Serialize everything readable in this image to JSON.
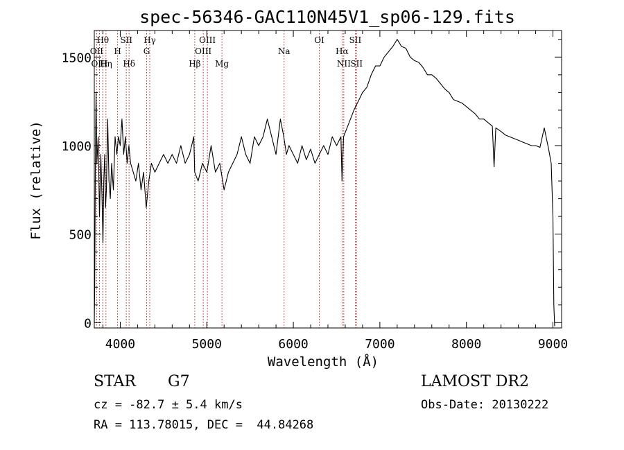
{
  "chart_data": {
    "type": "line",
    "title": "spec-56346-GAC110N45V1_sp06-129.fits",
    "xlabel": "Wavelength (Å)",
    "ylabel": "Flux (relative)",
    "xlim": [
      3700,
      9100
    ],
    "ylim": [
      -30,
      1650
    ],
    "x_ticks": [
      4000,
      5000,
      6000,
      7000,
      8000,
      9000
    ],
    "y_ticks": [
      0,
      500,
      1000,
      1500
    ],
    "grid": false,
    "series": [
      {
        "x": [
          3700,
          3705,
          3712,
          3720,
          3730,
          3745,
          3760,
          3775,
          3790,
          3800,
          3810,
          3820,
          3830,
          3840,
          3855,
          3870,
          3885,
          3900,
          3920,
          3940,
          3960,
          3980,
          4000,
          4020,
          4040,
          4060,
          4080,
          4100,
          4120,
          4150,
          4180,
          4210,
          4240,
          4270,
          4300,
          4330,
          4360,
          4400,
          4450,
          4500,
          4550,
          4600,
          4650,
          4700,
          4750,
          4800,
          4850,
          4860,
          4900,
          4950,
          5000,
          5050,
          5100,
          5150,
          5200,
          5250,
          5300,
          5350,
          5400,
          5450,
          5500,
          5550,
          5600,
          5650,
          5700,
          5750,
          5800,
          5850,
          5890,
          5920,
          5950,
          6000,
          6050,
          6100,
          6150,
          6200,
          6250,
          6300,
          6350,
          6400,
          6450,
          6500,
          6550,
          6563,
          6580,
          6620,
          6660,
          6700,
          6750,
          6800,
          6850,
          6900,
          6950,
          7000,
          7050,
          7100,
          7150,
          7200,
          7250,
          7300,
          7350,
          7400,
          7450,
          7500,
          7550,
          7600,
          7650,
          7700,
          7750,
          7800,
          7850,
          7900,
          7950,
          8000,
          8050,
          8100,
          8150,
          8200,
          8250,
          8300,
          8320,
          8340,
          8400,
          8450,
          8500,
          8550,
          8600,
          8650,
          8700,
          8750,
          8800,
          8850,
          8900,
          8950,
          8980,
          9000,
          9010,
          9020
        ],
        "y": [
          0,
          200,
          850,
          1300,
          900,
          1050,
          600,
          950,
          700,
          450,
          800,
          950,
          650,
          750,
          1150,
          800,
          700,
          900,
          750,
          1050,
          950,
          1050,
          1000,
          1150,
          950,
          1050,
          900,
          1000,
          900,
          850,
          800,
          900,
          750,
          850,
          650,
          800,
          900,
          850,
          900,
          950,
          900,
          950,
          900,
          1000,
          900,
          950,
          1050,
          850,
          800,
          900,
          850,
          1000,
          850,
          900,
          750,
          850,
          900,
          950,
          1050,
          950,
          900,
          1050,
          1000,
          1050,
          1150,
          1050,
          950,
          1150,
          1050,
          950,
          1000,
          950,
          900,
          1000,
          920,
          980,
          900,
          950,
          1000,
          950,
          1050,
          1000,
          1050,
          800,
          1050,
          1100,
          1150,
          1200,
          1250,
          1300,
          1330,
          1400,
          1450,
          1450,
          1500,
          1530,
          1560,
          1600,
          1560,
          1550,
          1500,
          1480,
          1470,
          1440,
          1400,
          1400,
          1380,
          1350,
          1320,
          1300,
          1260,
          1250,
          1240,
          1220,
          1200,
          1180,
          1150,
          1150,
          1130,
          1110,
          880,
          1100,
          1080,
          1060,
          1050,
          1040,
          1030,
          1020,
          1010,
          1000,
          1000,
          990,
          1100,
          980,
          900,
          600,
          100,
          -20
        ]
      }
    ],
    "lines": [
      {
        "name": "Hθ",
        "x": 3798,
        "row": 1
      },
      {
        "name": "OII",
        "x": 3727,
        "row": 2
      },
      {
        "name": "OIII",
        "x": 3760,
        "row": 3
      },
      {
        "name": "Hη",
        "x": 3835,
        "row": 3
      },
      {
        "name": "SII",
        "x": 4070,
        "row": 1
      },
      {
        "name": "H",
        "x": 3969,
        "row": 2
      },
      {
        "name": "Hδ",
        "x": 4102,
        "row": 3
      },
      {
        "name": "Hγ",
        "x": 4341,
        "row": 1
      },
      {
        "name": "G",
        "x": 4305,
        "row": 2
      },
      {
        "name": "OIII",
        "x": 5007,
        "row": 1
      },
      {
        "name": "OIII",
        "x": 4959,
        "row": 2
      },
      {
        "name": "Hβ",
        "x": 4861,
        "row": 3
      },
      {
        "name": "Mg",
        "x": 5175,
        "row": 3
      },
      {
        "name": "Na",
        "x": 5893,
        "row": 2
      },
      {
        "name": "OI",
        "x": 6300,
        "row": 1
      },
      {
        "name": "Hα",
        "x": 6563,
        "row": 2
      },
      {
        "name": "NII",
        "x": 6583,
        "row": 3
      },
      {
        "name": "SII",
        "x": 6716,
        "row": 1
      },
      {
        "name": "SII",
        "x": 6731,
        "row": 3
      }
    ]
  },
  "info": {
    "class_label": "STAR",
    "subclass_label": "G7",
    "redshift": "cz = -82.7 ± 5.4 km/s",
    "coords": "RA = 113.78015, DEC =  44.84268",
    "survey": "LAMOST DR2",
    "obs_date": "Obs-Date: 20130222"
  }
}
